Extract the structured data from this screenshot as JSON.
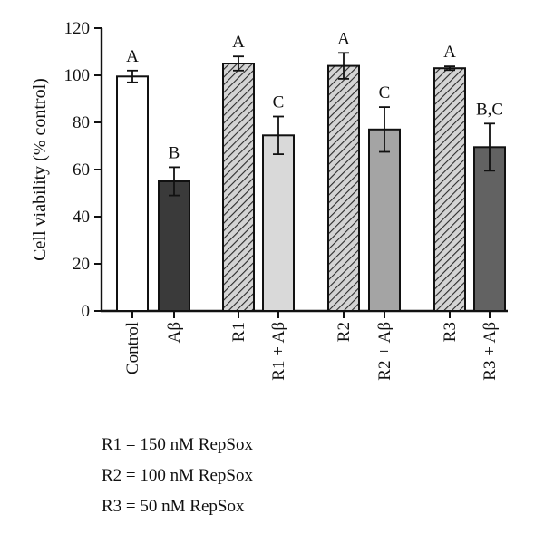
{
  "chart_data": {
    "type": "bar",
    "title": "",
    "xlabel": "",
    "ylabel": "Cell viability (% control)",
    "ylim": [
      0,
      120
    ],
    "yticks": [
      0,
      20,
      40,
      60,
      80,
      100,
      120
    ],
    "grid": false,
    "categories": [
      "Control",
      "Aβ",
      "R1",
      "R1 + Aβ",
      "R2",
      "R2 + Aβ",
      "R3",
      "R3 + Aβ"
    ],
    "values": [
      99.5,
      55,
      105,
      74.5,
      104,
      77,
      103,
      69.5
    ],
    "errors": [
      2.5,
      6,
      3,
      8,
      5.5,
      9.5,
      0.8,
      10
    ],
    "significance_labels": [
      "A",
      "B",
      "A",
      "C",
      "A",
      "C",
      "A",
      "B,C"
    ],
    "bar_styles": [
      {
        "fill": "#ffffff",
        "pattern": "none"
      },
      {
        "fill": "#3a3a3a",
        "pattern": "none"
      },
      {
        "fill": "#ffffff",
        "pattern": "hatch"
      },
      {
        "fill": "#d9d9d9",
        "pattern": "none"
      },
      {
        "fill": "#ffffff",
        "pattern": "hatch"
      },
      {
        "fill": "#a4a4a4",
        "pattern": "none"
      },
      {
        "fill": "#ffffff",
        "pattern": "hatch"
      },
      {
        "fill": "#626262",
        "pattern": "none"
      }
    ]
  },
  "legend": [
    "R1 = 150 nM RepSox",
    "R2 = 100 nM RepSox",
    "R3 = 50 nM RepSox"
  ]
}
